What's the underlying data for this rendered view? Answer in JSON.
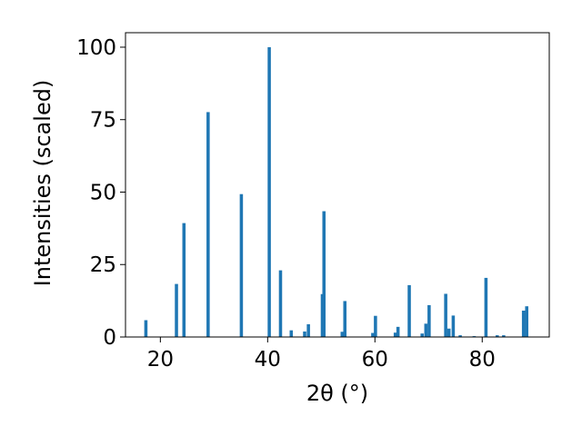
{
  "chart_data": {
    "type": "bar",
    "xlabel": "2θ (°)",
    "ylabel": "Intensities (scaled)",
    "xlim": [
      13.5,
      92.5
    ],
    "ylim": [
      0,
      105
    ],
    "xticks": [
      20,
      40,
      60,
      80
    ],
    "yticks": [
      0,
      25,
      50,
      75,
      100
    ],
    "bar_color": "#1f77b4",
    "bar_width": 0.6,
    "grid": false,
    "legend": "none",
    "x": [
      17.3,
      23.0,
      24.4,
      28.9,
      35.1,
      40.3,
      42.4,
      44.4,
      46.9,
      47.6,
      50.2,
      50.5,
      53.9,
      54.4,
      59.6,
      60.1,
      63.8,
      64.3,
      66.4,
      68.8,
      69.5,
      70.1,
      73.2,
      73.8,
      74.6,
      75.9,
      78.5,
      80.7,
      82.8,
      84.0,
      87.7,
      88.3
    ],
    "values": [
      5.8,
      18.3,
      39.3,
      77.6,
      49.3,
      100,
      23.0,
      2.3,
      1.9,
      4.4,
      14.8,
      43.4,
      1.8,
      12.4,
      1.4,
      7.3,
      1.5,
      3.5,
      17.9,
      1.2,
      4.6,
      11.0,
      14.9,
      2.9,
      7.4,
      0.6,
      0.3,
      20.4,
      0.6,
      0.6,
      9.1,
      10.6
    ]
  }
}
